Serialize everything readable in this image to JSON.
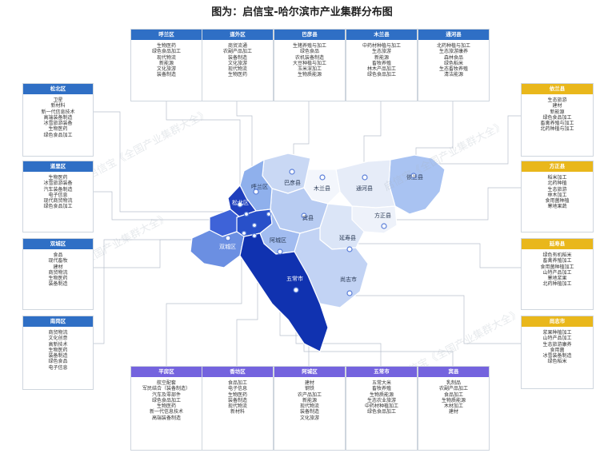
{
  "title": "图为：启信宝-哈尔滨市产业集群分布图",
  "watermark": "启信宝《全国产业集群大全》",
  "colors": {
    "blue_header": "#2f6fc5",
    "yellow_header": "#e9b71b",
    "purple_header": "#7463de"
  },
  "boxes": {
    "hulan": {
      "name": "呼兰区",
      "items": [
        "生物医药",
        "绿色食品加工",
        "现代物流",
        "新能源",
        "文化旅游",
        "装备制造"
      ]
    },
    "daowai": {
      "name": "道外区",
      "items": [
        "商贸流通",
        "农副产品加工",
        "装备制造",
        "文化旅游",
        "现代物流",
        "生物医药"
      ]
    },
    "bayan": {
      "name": "巴彦县",
      "items": [
        "生猪养殖与加工",
        "绿色食品",
        "农机装备制造",
        "大豆种植与加工",
        "玉米深加工",
        "生物质能源"
      ]
    },
    "mulan": {
      "name": "木兰县",
      "items": [
        "中药材种植与加工",
        "生态旅游",
        "新能源",
        "畜牧养殖",
        "林木产品加工",
        "绿色食品加工"
      ]
    },
    "tonghe": {
      "name": "通河县",
      "items": [
        "北药种植与加工",
        "生态旅游康养",
        "森林食品",
        "绿色稻米",
        "生态畜牧养殖",
        "清洁能源"
      ]
    },
    "songbei": {
      "name": "松北区",
      "items": [
        "卫星",
        "新材料",
        "新一代信息技术",
        "高端装备制造",
        "冰雪旅游装备",
        "生物医药",
        "绿色食品加工"
      ]
    },
    "daoli": {
      "name": "道里区",
      "items": [
        "生物医药",
        "冰雪旅游装备",
        "汽车装备制造",
        "电子信息",
        "现代商贸物流",
        "绿色食品加工"
      ]
    },
    "shuangcheng": {
      "name": "双城区",
      "items": [
        "食品",
        "现代畜牧",
        "建材",
        "商贸物流",
        "生物医药",
        "装备制造"
      ]
    },
    "nangang": {
      "name": "南岗区",
      "items": [
        "商贸物流",
        "文化创意",
        "高新技术",
        "生物医药",
        "装备制造",
        "绿色食品",
        "电子信息"
      ]
    },
    "yilan": {
      "name": "依兰县",
      "items": [
        "生态旅游",
        "建材",
        "新能源",
        "绿色食品加工",
        "畜禽养殖与加工",
        "北药种植与加工"
      ]
    },
    "fangzheng": {
      "name": "方正县",
      "items": [
        "稻米加工",
        "北药种植",
        "生态旅游",
        "林木加工",
        "食用菌种植",
        "寒地果蔬"
      ]
    },
    "yanshou": {
      "name": "延寿县",
      "items": [
        "绿色有机稻米",
        "畜禽养殖加工",
        "食用菌种植加工",
        "山特产品加工",
        "寒地浆果",
        "北药种植加工"
      ]
    },
    "shangzhi": {
      "name": "尚志市",
      "items": [
        "浆果种植加工",
        "山特产品加工",
        "生态旅游康养",
        "食用菌",
        "冰雪装备制造",
        "绿色稻米"
      ]
    },
    "pingfang": {
      "name": "平房区",
      "items": [
        "航空配套",
        "军民结合（装备制造）",
        "汽车及零部件",
        "绿色食品加工",
        "生物医药",
        "新一代信息技术",
        "高端装备制造"
      ]
    },
    "xiangfang": {
      "name": "香坊区",
      "items": [
        "食品加工",
        "电子信息",
        "生物医药",
        "装备制造",
        "现代物流",
        "新材料"
      ]
    },
    "acheng": {
      "name": "阿城区",
      "items": [
        "建材",
        "钢铁",
        "农产品加工",
        "新能源",
        "现代物流",
        "装备制造",
        "文化旅游"
      ]
    },
    "wuchang": {
      "name": "五常市",
      "items": [
        "五常大米",
        "畜牧养殖",
        "生物质能源",
        "生态农业旅游",
        "中药材种植加工",
        "绿色食品加工"
      ]
    },
    "binxian": {
      "name": "宾县",
      "items": [
        "乳制品",
        "农副产品加工",
        "食品加工",
        "生物质能源",
        "木材加工",
        "建材"
      ]
    }
  },
  "map_labels": {
    "songbei": "松北区",
    "hulan": "呼兰区",
    "bayan": "巴彦县",
    "mulan": "木兰县",
    "tonghe": "通河县",
    "yilan": "依兰县",
    "fangzheng": "方正县",
    "binxian": "宾县",
    "acheng": "阿城区",
    "yanshou": "延寿县",
    "shuangcheng": "双城区",
    "wuchang": "五常市",
    "shangzhi": "尚志市"
  }
}
